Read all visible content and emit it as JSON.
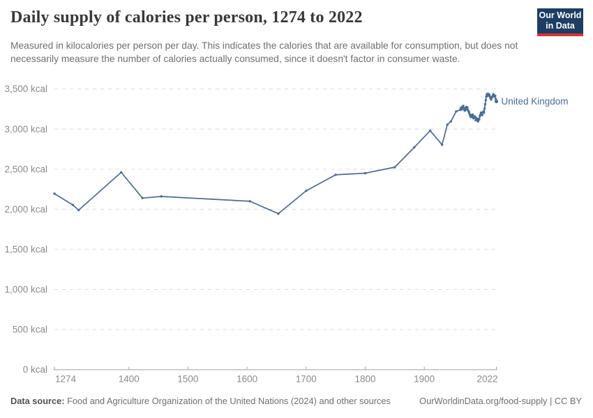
{
  "header": {
    "title": "Daily supply of calories per person, 1274 to 2022",
    "subtitle": "Measured in kilocalories per person per day. This indicates the calories that are available for consumption, but does not necessarily measure the number of calories actually consumed, since it doesn't factor in consumer waste.",
    "logo": {
      "line1": "Our World",
      "line2": "in Data"
    }
  },
  "footer": {
    "source_label": "Data source:",
    "source_text": " Food and Agriculture Organization of the United Nations (2024) and other sources",
    "link_text": "OurWorldinData.org/food-supply | CC BY"
  },
  "colors": {
    "line": "#4c6a9c",
    "entity_label": "#4c6a9c",
    "grid": "#dcdcdc",
    "axis": "#a3a3a3",
    "tick_text": "#8a8a8a",
    "logo_bg": "#1d3d63",
    "logo_stripe": "#d8352c"
  },
  "chart_data": {
    "type": "line",
    "title": "Daily supply of calories per person, 1274 to 2022",
    "unit": "kcal",
    "xlabel": "",
    "ylabel": "",
    "xlim": [
      1274,
      2022
    ],
    "ylim": [
      0,
      3500
    ],
    "grid": "horizontal-dashed",
    "legend_position": "end-of-line-label",
    "x_ticks": [
      1274,
      1400,
      1500,
      1600,
      1700,
      1800,
      1900,
      2022
    ],
    "y_ticks": [
      {
        "v": 0,
        "label": "0 kcal"
      },
      {
        "v": 500,
        "label": "500 kcal"
      },
      {
        "v": 1000,
        "label": "1,000 kcal"
      },
      {
        "v": 1500,
        "label": "1,500 kcal"
      },
      {
        "v": 2000,
        "label": "2,000 kcal"
      },
      {
        "v": 2500,
        "label": "2,500 kcal"
      },
      {
        "v": 3000,
        "label": "3,000 kcal"
      },
      {
        "v": 3500,
        "label": "3,500 kcal"
      }
    ],
    "series": [
      {
        "name": "United Kingdom",
        "points": [
          [
            1274,
            2195
          ],
          [
            1305,
            2055
          ],
          [
            1315,
            1990
          ],
          [
            1387,
            2460
          ],
          [
            1423,
            2140
          ],
          [
            1455,
            2160
          ],
          [
            1605,
            2100
          ],
          [
            1653,
            1945
          ],
          [
            1700,
            2230
          ],
          [
            1750,
            2430
          ],
          [
            1800,
            2450
          ],
          [
            1850,
            2525
          ],
          [
            1883,
            2772
          ],
          [
            1910,
            2980
          ],
          [
            1930,
            2805
          ],
          [
            1939,
            3055
          ],
          [
            1945,
            3095
          ],
          [
            1954,
            3220
          ],
          [
            1961,
            3240
          ],
          [
            1962,
            3265
          ],
          [
            1963,
            3245
          ],
          [
            1964,
            3275
          ],
          [
            1965,
            3255
          ],
          [
            1966,
            3290
          ],
          [
            1967,
            3260
          ],
          [
            1968,
            3235
          ],
          [
            1969,
            3230
          ],
          [
            1970,
            3260
          ],
          [
            1971,
            3275
          ],
          [
            1972,
            3250
          ],
          [
            1973,
            3270
          ],
          [
            1974,
            3235
          ],
          [
            1975,
            3220
          ],
          [
            1976,
            3205
          ],
          [
            1977,
            3180
          ],
          [
            1978,
            3160
          ],
          [
            1979,
            3150
          ],
          [
            1980,
            3175
          ],
          [
            1981,
            3155
          ],
          [
            1982,
            3180
          ],
          [
            1983,
            3135
          ],
          [
            1984,
            3160
          ],
          [
            1985,
            3145
          ],
          [
            1986,
            3155
          ],
          [
            1987,
            3110
          ],
          [
            1988,
            3135
          ],
          [
            1989,
            3115
          ],
          [
            1990,
            3130
          ],
          [
            1991,
            3095
          ],
          [
            1992,
            3125
          ],
          [
            1993,
            3120
          ],
          [
            1994,
            3160
          ],
          [
            1995,
            3180
          ],
          [
            1996,
            3205
          ],
          [
            1997,
            3190
          ],
          [
            1998,
            3175
          ],
          [
            1999,
            3205
          ],
          [
            2000,
            3220
          ],
          [
            2001,
            3205
          ],
          [
            2002,
            3255
          ],
          [
            2003,
            3310
          ],
          [
            2004,
            3360
          ],
          [
            2005,
            3405
          ],
          [
            2006,
            3435
          ],
          [
            2007,
            3415
          ],
          [
            2008,
            3440
          ],
          [
            2009,
            3420
          ],
          [
            2010,
            3430
          ],
          [
            2011,
            3405
          ],
          [
            2012,
            3390
          ],
          [
            2013,
            3370
          ],
          [
            2014,
            3390
          ],
          [
            2015,
            3400
          ],
          [
            2016,
            3420
          ],
          [
            2017,
            3435
          ],
          [
            2018,
            3420
          ],
          [
            2019,
            3405
          ],
          [
            2020,
            3415
          ],
          [
            2021,
            3375
          ],
          [
            2022,
            3345
          ]
        ]
      }
    ]
  }
}
